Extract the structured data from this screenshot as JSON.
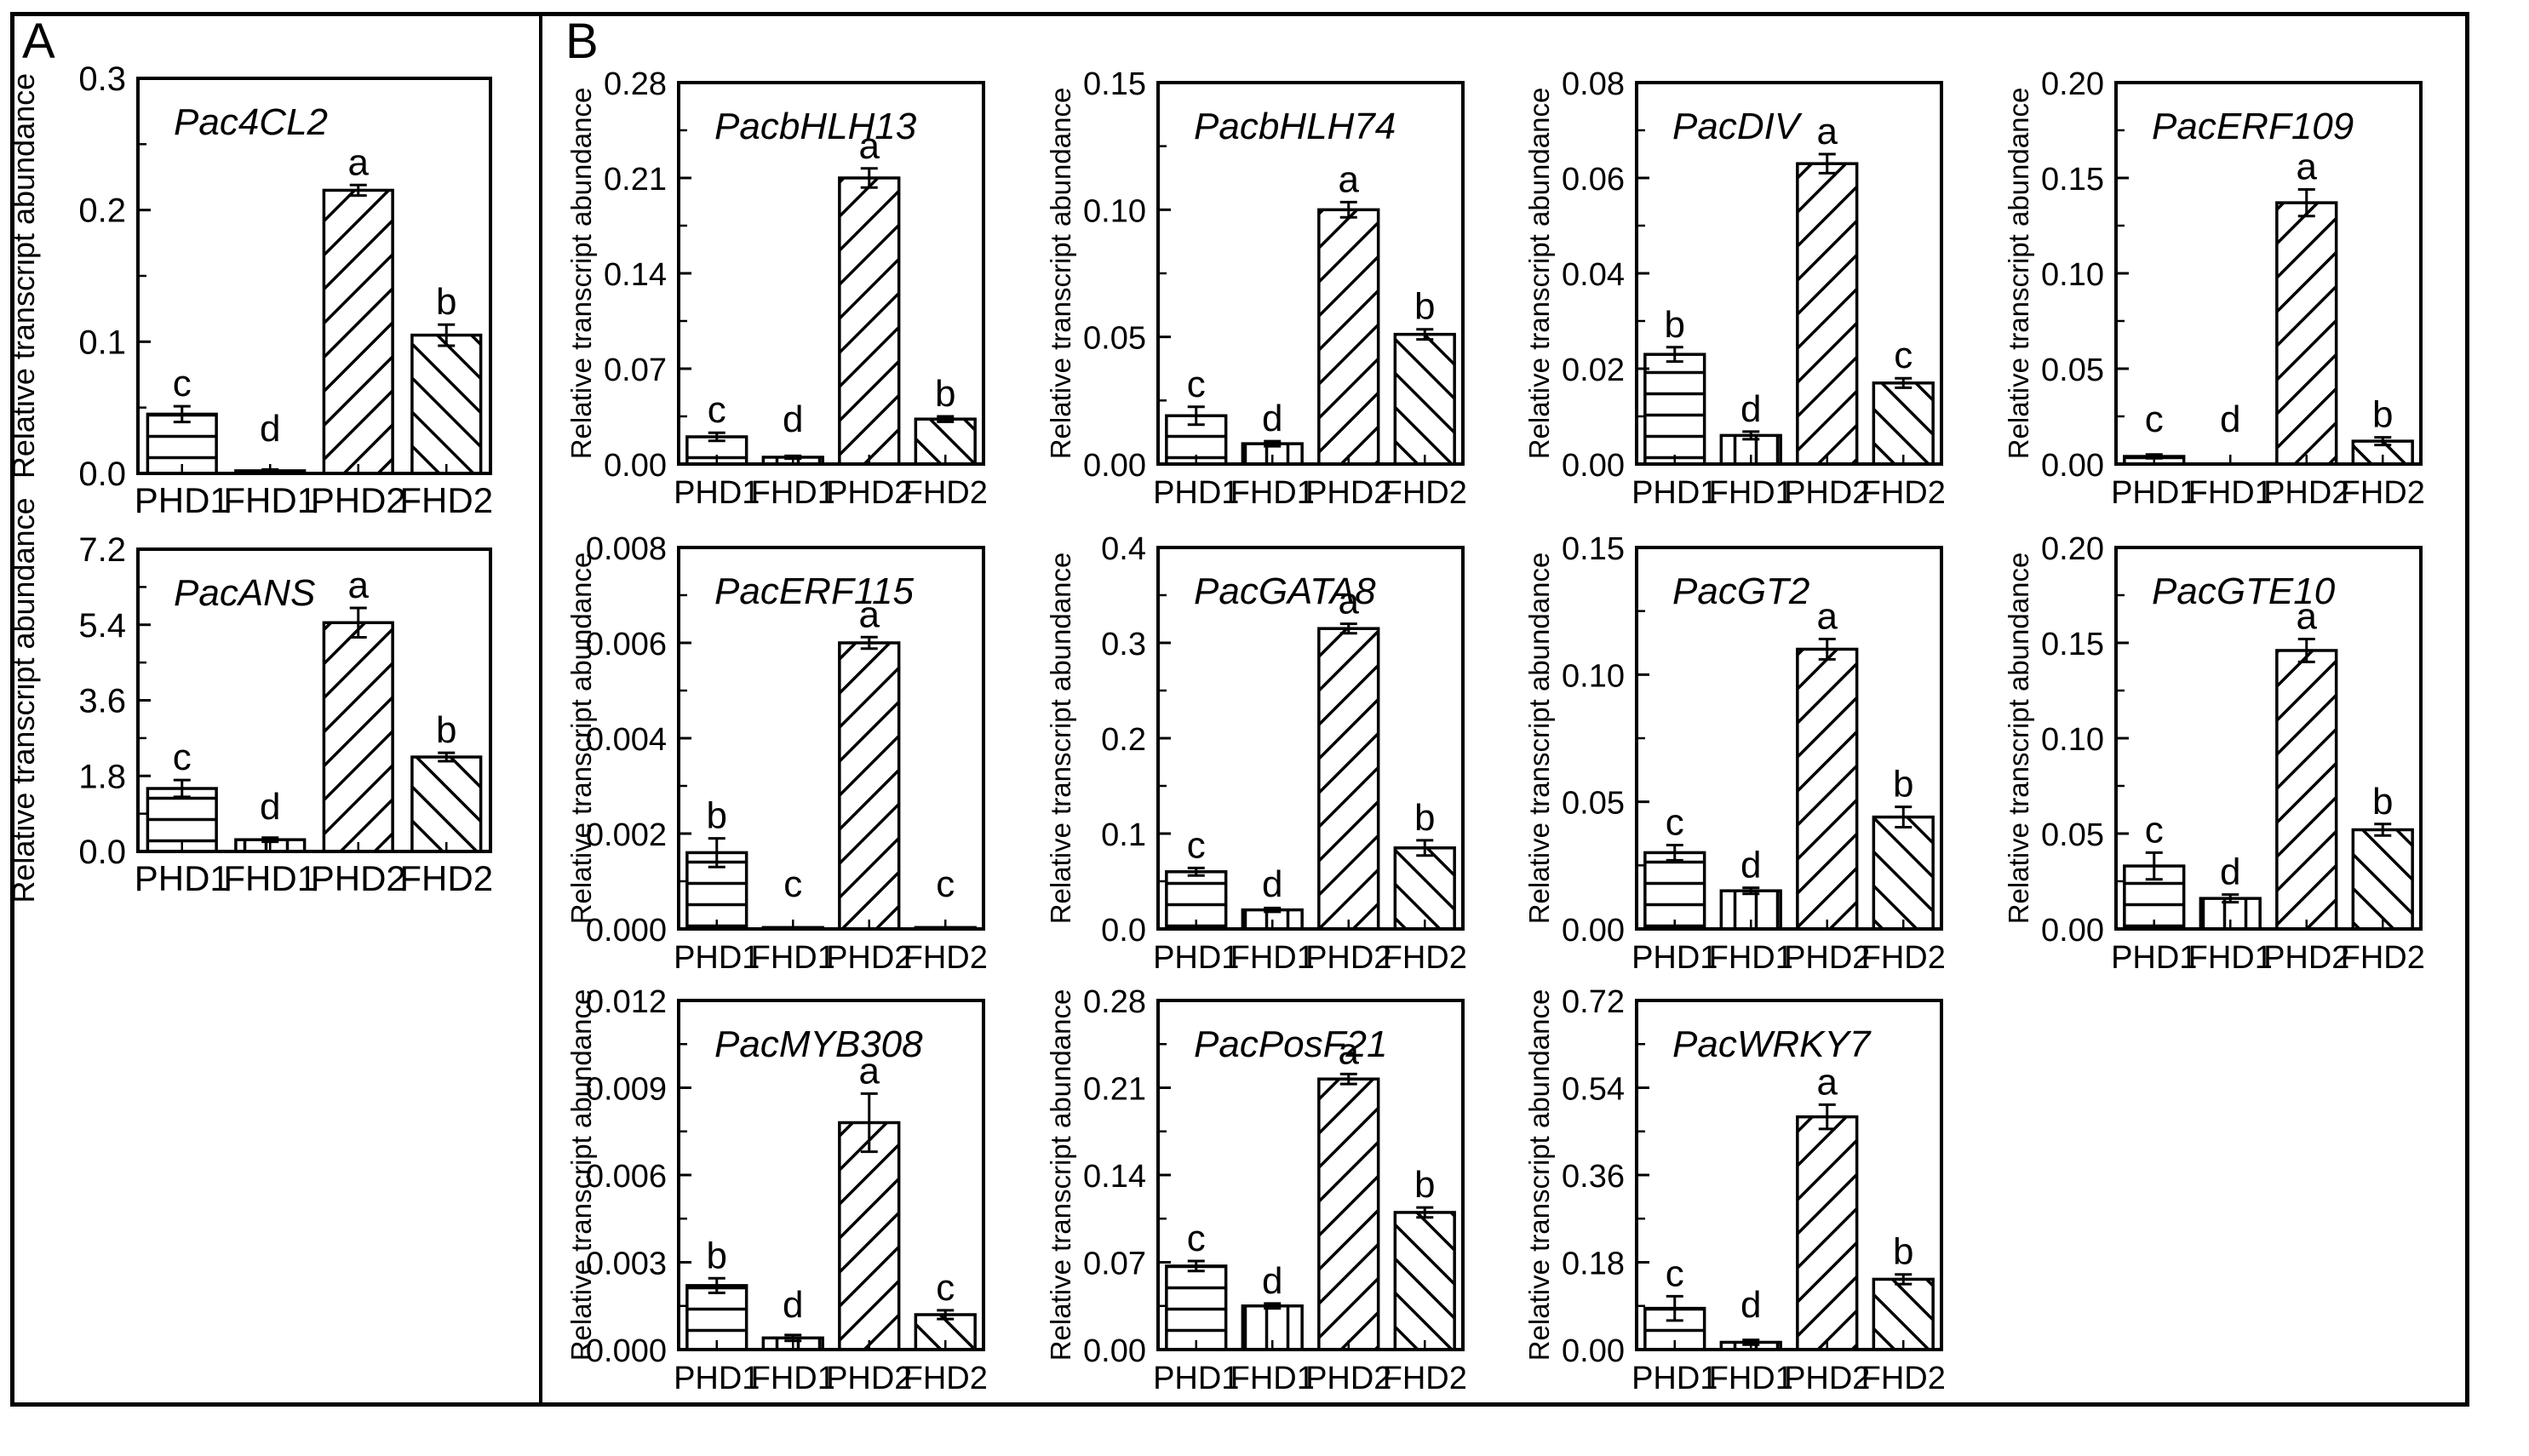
{
  "figure": {
    "panels": [
      {
        "label": "A"
      },
      {
        "label": "B"
      }
    ],
    "ylabel": "Relative transcript abundance",
    "categories": [
      "PHD1",
      "FHD1",
      "PHD2",
      "FHD2"
    ],
    "hatch_legend": {
      "PHD1": "horizontal",
      "FHD1": "vertical",
      "PHD2": "diagonal-up",
      "FHD2": "diagonal-down"
    },
    "colors": {
      "bar_fill": "#ffffff",
      "bar_stroke": "#000000",
      "text": "#000000"
    }
  },
  "chart_data": [
    {
      "type": "bar",
      "panel": "A",
      "title": "Pac4CL2",
      "ylabel": "Relative transcript abundance",
      "categories": [
        "PHD1",
        "FHD1",
        "PHD2",
        "FHD2"
      ],
      "values": [
        0.045,
        0.002,
        0.215,
        0.105
      ],
      "errors": [
        0.006,
        0.001,
        0.004,
        0.008
      ],
      "letters": [
        "c",
        "d",
        "a",
        "b"
      ],
      "ylim": [
        0,
        0.3
      ],
      "yticks": [
        0,
        0.1,
        0.2,
        0.3
      ],
      "ytick_labels": [
        "0.0",
        "0.1",
        "0.2",
        "0.3"
      ],
      "hatches": [
        "horizontal",
        "vertical",
        "diagonal-up",
        "diagonal-down"
      ]
    },
    {
      "type": "bar",
      "panel": "A",
      "title": "PacANS",
      "ylabel": "Relative transcript abundance",
      "categories": [
        "PHD1",
        "FHD1",
        "PHD2",
        "FHD2"
      ],
      "values": [
        1.5,
        0.28,
        5.45,
        2.25
      ],
      "errors": [
        0.2,
        0.05,
        0.35,
        0.1
      ],
      "letters": [
        "c",
        "d",
        "a",
        "b"
      ],
      "ylim": [
        0,
        7.2
      ],
      "yticks": [
        0,
        1.8,
        3.6,
        5.4,
        7.2
      ],
      "ytick_labels": [
        "0.0",
        "1.8",
        "3.6",
        "5.4",
        "7.2"
      ],
      "hatches": [
        "horizontal",
        "vertical",
        "diagonal-up",
        "diagonal-down"
      ]
    },
    {
      "type": "bar",
      "panel": "B",
      "title": "PacbHLH13",
      "ylabel": "Relative transcript abundance",
      "categories": [
        "PHD1",
        "FHD1",
        "PHD2",
        "FHD2"
      ],
      "values": [
        0.02,
        0.005,
        0.21,
        0.033
      ],
      "errors": [
        0.003,
        0.001,
        0.007,
        0.002
      ],
      "letters": [
        "c",
        "d",
        "a",
        "b"
      ],
      "ylim": [
        0,
        0.28
      ],
      "yticks": [
        0,
        0.07,
        0.14,
        0.21,
        0.28
      ],
      "ytick_labels": [
        "0.00",
        "0.07",
        "0.14",
        "0.21",
        "0.28"
      ],
      "hatches": [
        "horizontal",
        "vertical",
        "diagonal-up",
        "diagonal-down"
      ]
    },
    {
      "type": "bar",
      "panel": "B",
      "title": "PacbHLH74",
      "ylabel": "Relative transcript abundance",
      "categories": [
        "PHD1",
        "FHD1",
        "PHD2",
        "FHD2"
      ],
      "values": [
        0.019,
        0.008,
        0.1,
        0.051
      ],
      "errors": [
        0.0035,
        0.001,
        0.003,
        0.002
      ],
      "letters": [
        "c",
        "d",
        "a",
        "b"
      ],
      "ylim": [
        0,
        0.15
      ],
      "yticks": [
        0,
        0.05,
        0.1,
        0.15
      ],
      "ytick_labels": [
        "0.00",
        "0.05",
        "0.10",
        "0.15"
      ],
      "hatches": [
        "horizontal",
        "vertical",
        "diagonal-up",
        "diagonal-down"
      ]
    },
    {
      "type": "bar",
      "panel": "B",
      "title": "PacDIV",
      "ylabel": "Relative transcript abundance",
      "categories": [
        "PHD1",
        "FHD1",
        "PHD2",
        "FHD2"
      ],
      "values": [
        0.023,
        0.006,
        0.063,
        0.017
      ],
      "errors": [
        0.0015,
        0.0008,
        0.002,
        0.001
      ],
      "letters": [
        "b",
        "d",
        "a",
        "c"
      ],
      "ylim": [
        0,
        0.08
      ],
      "yticks": [
        0,
        0.02,
        0.04,
        0.06,
        0.08
      ],
      "ytick_labels": [
        "0.00",
        "0.02",
        "0.04",
        "0.06",
        "0.08"
      ],
      "hatches": [
        "horizontal",
        "vertical",
        "diagonal-up",
        "diagonal-down"
      ]
    },
    {
      "type": "bar",
      "panel": "B",
      "title": "PacERF109",
      "ylabel": "Relative transcript abundance",
      "categories": [
        "PHD1",
        "FHD1",
        "PHD2",
        "FHD2"
      ],
      "values": [
        0.004,
        0.0005,
        0.137,
        0.012
      ],
      "errors": [
        0.001,
        0.0002,
        0.007,
        0.002
      ],
      "letters": [
        "c",
        "d",
        "a",
        "b"
      ],
      "ylim": [
        0,
        0.2
      ],
      "yticks": [
        0,
        0.05,
        0.1,
        0.15,
        0.2
      ],
      "ytick_labels": [
        "0.00",
        "0.05",
        "0.10",
        "0.15",
        "0.20"
      ],
      "hatches": [
        "horizontal",
        "vertical",
        "diagonal-up",
        "diagonal-down"
      ]
    },
    {
      "type": "bar",
      "panel": "B",
      "title": "PacERF115",
      "ylabel": "Relative transcript abundance",
      "categories": [
        "PHD1",
        "FHD1",
        "PHD2",
        "FHD2"
      ],
      "values": [
        0.0016,
        3e-05,
        0.006,
        3e-05
      ],
      "errors": [
        0.0003,
        0,
        0.00012,
        0
      ],
      "letters": [
        "b",
        "c",
        "a",
        "c"
      ],
      "ylim": [
        0,
        0.008
      ],
      "yticks": [
        0,
        0.002,
        0.004,
        0.006,
        0.008
      ],
      "ytick_labels": [
        "0.000",
        "0.002",
        "0.004",
        "0.006",
        "0.008"
      ],
      "hatches": [
        "horizontal",
        "vertical",
        "diagonal-up",
        "diagonal-down"
      ]
    },
    {
      "type": "bar",
      "panel": "B",
      "title": "PacGATA8",
      "ylabel": "Relative transcript abundance",
      "categories": [
        "PHD1",
        "FHD1",
        "PHD2",
        "FHD2"
      ],
      "values": [
        0.06,
        0.02,
        0.315,
        0.085
      ],
      "errors": [
        0.004,
        0.002,
        0.005,
        0.008
      ],
      "letters": [
        "c",
        "d",
        "a",
        "b"
      ],
      "ylim": [
        0,
        0.4
      ],
      "yticks": [
        0,
        0.1,
        0.2,
        0.3,
        0.4
      ],
      "ytick_labels": [
        "0.0",
        "0.1",
        "0.2",
        "0.3",
        "0.4"
      ],
      "hatches": [
        "horizontal",
        "vertical",
        "diagonal-up",
        "diagonal-down"
      ]
    },
    {
      "type": "bar",
      "panel": "B",
      "title": "PacGT2",
      "ylabel": "Relative transcript abundance",
      "categories": [
        "PHD1",
        "FHD1",
        "PHD2",
        "FHD2"
      ],
      "values": [
        0.03,
        0.015,
        0.11,
        0.044
      ],
      "errors": [
        0.003,
        0.0012,
        0.004,
        0.004
      ],
      "letters": [
        "c",
        "d",
        "a",
        "b"
      ],
      "ylim": [
        0,
        0.15
      ],
      "yticks": [
        0,
        0.05,
        0.1,
        0.15
      ],
      "ytick_labels": [
        "0.00",
        "0.05",
        "0.10",
        "0.15"
      ],
      "hatches": [
        "horizontal",
        "vertical",
        "diagonal-up",
        "diagonal-down"
      ]
    },
    {
      "type": "bar",
      "panel": "B",
      "title": "PacGTE10",
      "ylabel": "Relative transcript abundance",
      "categories": [
        "PHD1",
        "FHD1",
        "PHD2",
        "FHD2"
      ],
      "values": [
        0.033,
        0.016,
        0.146,
        0.052
      ],
      "errors": [
        0.007,
        0.002,
        0.006,
        0.003
      ],
      "letters": [
        "c",
        "d",
        "a",
        "b"
      ],
      "ylim": [
        0,
        0.2
      ],
      "yticks": [
        0,
        0.05,
        0.1,
        0.15,
        0.2
      ],
      "ytick_labels": [
        "0.00",
        "0.05",
        "0.10",
        "0.15",
        "0.20"
      ],
      "hatches": [
        "horizontal",
        "vertical",
        "diagonal-up",
        "diagonal-down"
      ]
    },
    {
      "type": "bar",
      "panel": "B",
      "title": "PacMYB308",
      "ylabel": "Relative transcript abundance",
      "categories": [
        "PHD1",
        "FHD1",
        "PHD2",
        "FHD2"
      ],
      "values": [
        0.0022,
        0.0004,
        0.0078,
        0.0012
      ],
      "errors": [
        0.00025,
        0.0001,
        0.001,
        0.00015
      ],
      "letters": [
        "b",
        "d",
        "a",
        "c"
      ],
      "ylim": [
        0,
        0.012
      ],
      "yticks": [
        0,
        0.003,
        0.006,
        0.009,
        0.012
      ],
      "ytick_labels": [
        "0.000",
        "0.003",
        "0.006",
        "0.009",
        "0.012"
      ],
      "hatches": [
        "horizontal",
        "vertical",
        "diagonal-up",
        "diagonal-down"
      ]
    },
    {
      "type": "bar",
      "panel": "B",
      "title": "PacPosF21",
      "ylabel": "Relative transcript abundance",
      "categories": [
        "PHD1",
        "FHD1",
        "PHD2",
        "FHD2"
      ],
      "values": [
        0.067,
        0.035,
        0.217,
        0.11
      ],
      "errors": [
        0.004,
        0.002,
        0.004,
        0.004
      ],
      "letters": [
        "c",
        "d",
        "a",
        "b"
      ],
      "ylim": [
        0,
        0.28
      ],
      "yticks": [
        0,
        0.07,
        0.14,
        0.21,
        0.28
      ],
      "ytick_labels": [
        "0.00",
        "0.07",
        "0.14",
        "0.21",
        "0.28"
      ],
      "hatches": [
        "horizontal",
        "vertical",
        "diagonal-up",
        "diagonal-down"
      ]
    },
    {
      "type": "bar",
      "panel": "B",
      "title": "PacWRKY7",
      "ylabel": "Relative transcript abundance",
      "categories": [
        "PHD1",
        "FHD1",
        "PHD2",
        "FHD2"
      ],
      "values": [
        0.085,
        0.015,
        0.48,
        0.145
      ],
      "errors": [
        0.025,
        0.005,
        0.025,
        0.01
      ],
      "letters": [
        "c",
        "d",
        "a",
        "b"
      ],
      "ylim": [
        0,
        0.72
      ],
      "yticks": [
        0,
        0.18,
        0.36,
        0.54,
        0.72
      ],
      "ytick_labels": [
        "0.00",
        "0.18",
        "0.36",
        "0.54",
        "0.72"
      ],
      "hatches": [
        "horizontal",
        "vertical",
        "diagonal-up",
        "diagonal-down"
      ]
    }
  ]
}
